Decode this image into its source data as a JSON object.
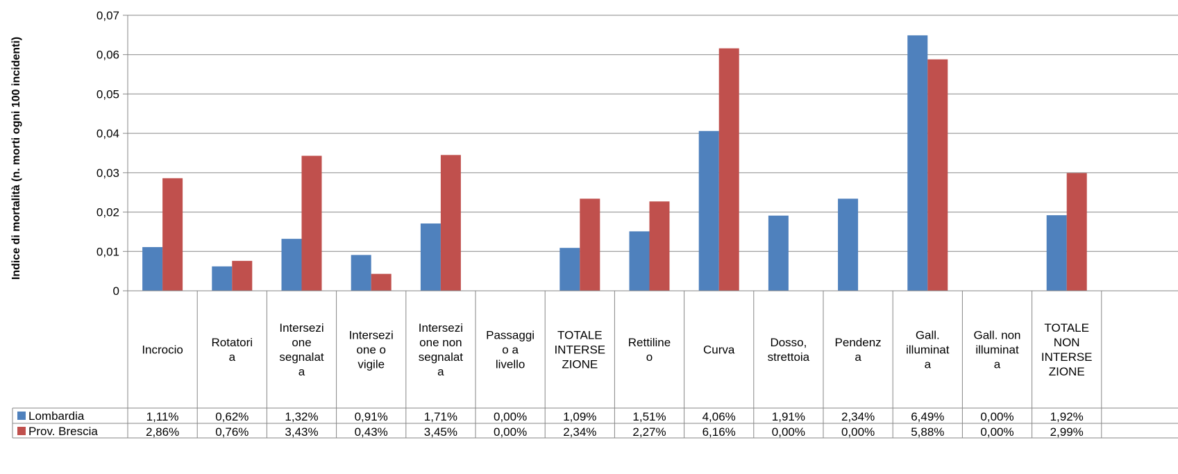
{
  "chart_data": {
    "type": "bar",
    "ylabel": "Indice di mortalità (n. morti ogni 100 incidenti)",
    "ylim": [
      0,
      0.07
    ],
    "yticks": [
      "0",
      "0,01",
      "0,02",
      "0,03",
      "0,04",
      "0,05",
      "0,06",
      "0,07"
    ],
    "grid": true,
    "legend_placement": "data-table-left",
    "categories": [
      [
        "Incrocio"
      ],
      [
        "Rotatori",
        "a"
      ],
      [
        "Intersezi",
        "one",
        "segnalat",
        "a"
      ],
      [
        "Intersezi",
        "one o",
        "vigile"
      ],
      [
        "Intersezi",
        "one non",
        "segnalat",
        "a"
      ],
      [
        "Passaggi",
        "o a",
        "livello"
      ],
      [
        "TOTALE",
        "INTERSE",
        "ZIONE"
      ],
      [
        "Rettiline",
        "o"
      ],
      [
        "Curva"
      ],
      [
        "Dosso,",
        "strettoia"
      ],
      [
        "Pendenz",
        "a"
      ],
      [
        "Gall.",
        "illuminat",
        "a"
      ],
      [
        "Gall. non",
        "illuminat",
        "a"
      ],
      [
        "TOTALE",
        "NON",
        "INTERSE",
        "ZIONE"
      ]
    ],
    "series": [
      {
        "name": "Lombardia",
        "color": "#4F81BD",
        "values": [
          0.0111,
          0.0062,
          0.0132,
          0.0091,
          0.0171,
          0.0,
          0.0109,
          0.0151,
          0.0406,
          0.0191,
          0.0234,
          0.0649,
          0.0,
          0.0192
        ],
        "labels": [
          "1,11%",
          "0,62%",
          "1,32%",
          "0,91%",
          "1,71%",
          "0,00%",
          "1,09%",
          "1,51%",
          "4,06%",
          "1,91%",
          "2,34%",
          "6,49%",
          "0,00%",
          "1,92%"
        ]
      },
      {
        "name": "Prov. Brescia",
        "color": "#C0504D",
        "values": [
          0.0286,
          0.0076,
          0.0343,
          0.0043,
          0.0345,
          0.0,
          0.0234,
          0.0227,
          0.0616,
          0.0,
          0.0,
          0.0588,
          0.0,
          0.0299
        ],
        "labels": [
          "2,86%",
          "0,76%",
          "3,43%",
          "0,43%",
          "3,45%",
          "0,00%",
          "2,34%",
          "2,27%",
          "6,16%",
          "0,00%",
          "0,00%",
          "5,88%",
          "0,00%",
          "2,99%"
        ]
      }
    ]
  }
}
